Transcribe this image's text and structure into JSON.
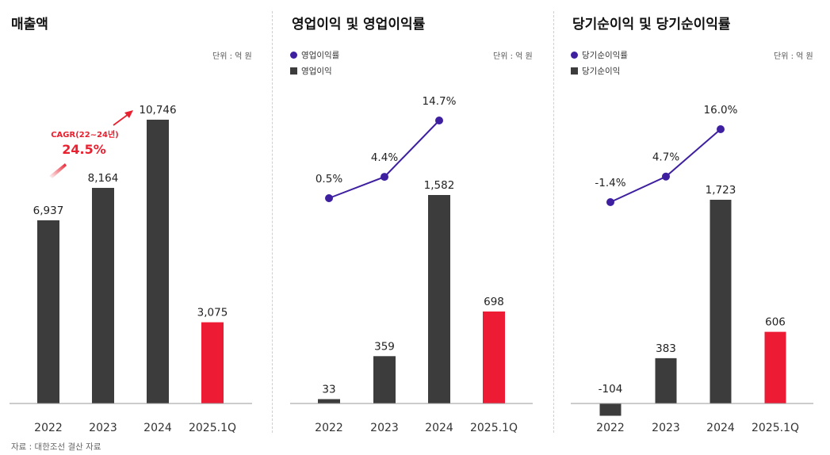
{
  "panels": [
    {
      "title": "매출액",
      "unit": "단위 : 억 원"
    },
    {
      "title": "영업이익 및 영업이익률",
      "unit": "단위 : 억 원",
      "legend": {
        "line": "영업이익률",
        "bar": "영업이익"
      }
    },
    {
      "title": "당기순이익 및 당기순이익률",
      "unit": "단위 : 억 원",
      "legend": {
        "line": "당기순이익률",
        "bar": "당기순이익"
      }
    }
  ],
  "annotation": {
    "label": "CAGR(22~24년)",
    "value": "24.5%"
  },
  "source": "자료 : 대한조선 결산 자료",
  "colors": {
    "bar": "#3c3c3c",
    "highlight": "#ed1b34",
    "line": "#3d1fa0",
    "annotation": "#e8202f"
  },
  "chart_data": [
    {
      "type": "bar",
      "title": "매출액",
      "categories": [
        "2022",
        "2023",
        "2024",
        "2025.1Q"
      ],
      "values": [
        6937,
        8164,
        10746,
        3075
      ],
      "labels": [
        "6,937",
        "8,164",
        "10,746",
        "3,075"
      ],
      "ylim": [
        0,
        10746
      ],
      "highlight_index": 3
    },
    {
      "type": "bar",
      "title": "영업이익 및 영업이익률",
      "categories": [
        "2022",
        "2023",
        "2024",
        "2025.1Q"
      ],
      "series": [
        {
          "name": "영업이익",
          "type": "bar",
          "values": [
            33,
            359,
            1582,
            698
          ],
          "labels": [
            "33",
            "359",
            "1,582",
            "698"
          ]
        },
        {
          "name": "영업이익률",
          "type": "line",
          "values": [
            0.5,
            4.4,
            14.7,
            null
          ],
          "labels": [
            "0.5%",
            "4.4%",
            "14.7%",
            null
          ]
        }
      ],
      "ylim": [
        0,
        1582
      ],
      "highlight_index": 3
    },
    {
      "type": "bar",
      "title": "당기순이익 및 당기순이익률",
      "categories": [
        "2022",
        "2023",
        "2024",
        "2025.1Q"
      ],
      "series": [
        {
          "name": "당기순이익",
          "type": "bar",
          "values": [
            -104,
            383,
            1723,
            606
          ],
          "labels": [
            "-104",
            "383",
            "1,723",
            "606"
          ]
        },
        {
          "name": "당기순이익률",
          "type": "line",
          "values": [
            -1.4,
            4.7,
            16.0,
            null
          ],
          "labels": [
            "-1.4%",
            "4.7%",
            "16.0%",
            null
          ]
        }
      ],
      "ylim": [
        -104,
        1723
      ],
      "highlight_index": 3
    }
  ]
}
